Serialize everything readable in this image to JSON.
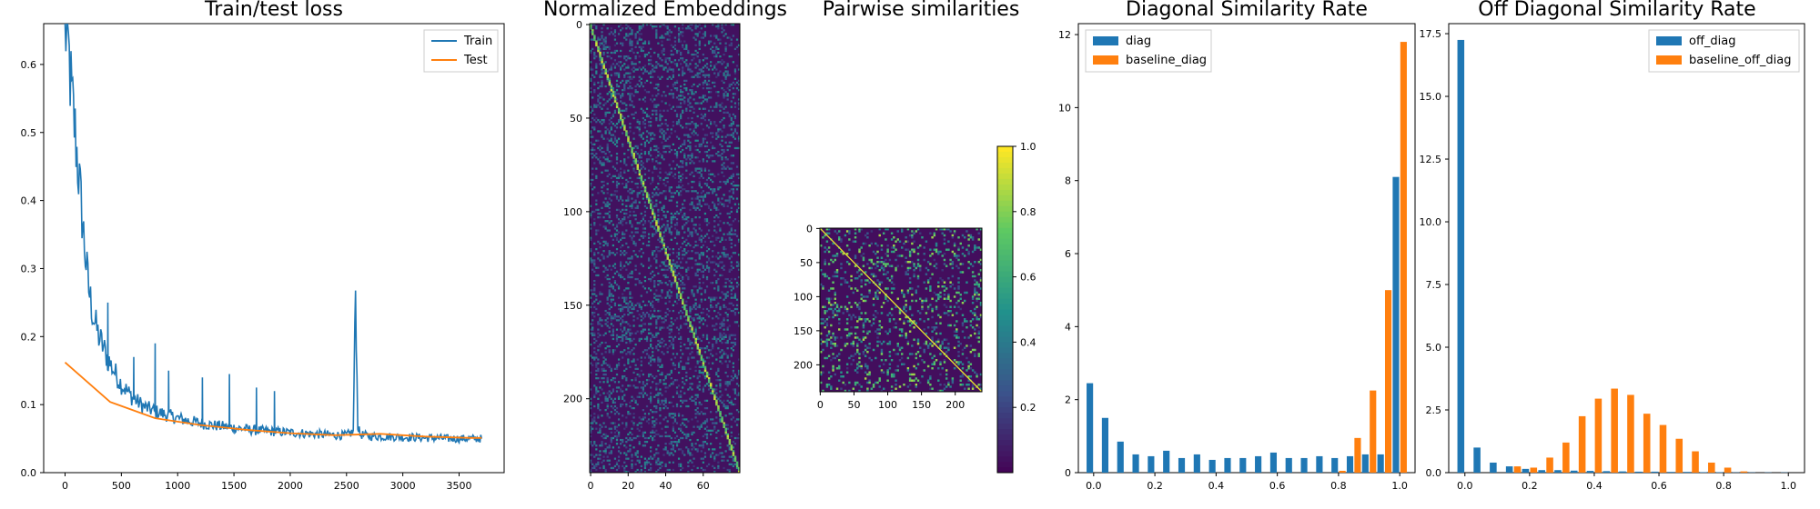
{
  "chart_data": [
    {
      "type": "line",
      "title": "Train/test loss",
      "xlim": [
        -190,
        3900
      ],
      "ylim": [
        0,
        0.66
      ],
      "xticks": [
        0,
        500,
        1000,
        1500,
        2000,
        2500,
        3000,
        3500
      ],
      "yticks": [
        0.0,
        0.1,
        0.2,
        0.3,
        0.4,
        0.5,
        0.6
      ],
      "legend_position": "top-right",
      "series": [
        {
          "name": "Train",
          "color": "#1f77b4",
          "x": [
            0,
            30,
            60,
            90,
            120,
            150,
            180,
            210,
            250,
            300,
            350,
            400,
            450,
            500,
            550,
            600,
            700,
            800,
            900,
            1000,
            1100,
            1200,
            1300,
            1400,
            1500,
            1600,
            1700,
            1800,
            1900,
            2000,
            2100,
            2200,
            2300,
            2400,
            2500,
            2560,
            2580,
            2600,
            2620,
            2700,
            2800,
            2900,
            3000,
            3100,
            3200,
            3300,
            3400,
            3500,
            3600,
            3700
          ],
          "y": [
            0.66,
            0.62,
            0.55,
            0.5,
            0.44,
            0.38,
            0.32,
            0.27,
            0.23,
            0.2,
            0.18,
            0.16,
            0.145,
            0.13,
            0.12,
            0.11,
            0.097,
            0.09,
            0.085,
            0.08,
            0.076,
            0.073,
            0.07,
            0.068,
            0.066,
            0.064,
            0.062,
            0.061,
            0.06,
            0.059,
            0.058,
            0.057,
            0.056,
            0.055,
            0.055,
            0.06,
            0.27,
            0.07,
            0.056,
            0.054,
            0.053,
            0.053,
            0.052,
            0.052,
            0.051,
            0.051,
            0.05,
            0.05,
            0.05,
            0.05
          ],
          "spikes": [
            {
              "x": 380,
              "y": 0.25
            },
            {
              "x": 610,
              "y": 0.17
            },
            {
              "x": 800,
              "y": 0.19
            },
            {
              "x": 920,
              "y": 0.15
            },
            {
              "x": 1220,
              "y": 0.14
            },
            {
              "x": 1460,
              "y": 0.145
            },
            {
              "x": 1700,
              "y": 0.125
            },
            {
              "x": 1860,
              "y": 0.12
            }
          ]
        },
        {
          "name": "Test",
          "color": "#ff7f0e",
          "x": [
            0,
            400,
            800,
            1200,
            1600,
            2000,
            2400,
            2800,
            3200,
            3600,
            3700
          ],
          "y": [
            0.162,
            0.104,
            0.08,
            0.07,
            0.063,
            0.058,
            0.055,
            0.057,
            0.053,
            0.051,
            0.051
          ]
        }
      ]
    },
    {
      "type": "heatmap",
      "title": "Normalized Embeddings",
      "xticks": [
        0,
        20,
        40,
        60
      ],
      "yticks": [
        0,
        50,
        100,
        150,
        200
      ],
      "rows": 240,
      "cols": 80,
      "colormap": "viridis"
    },
    {
      "type": "heatmap",
      "title": "Pairwise similarities",
      "xticks": [
        0,
        50,
        100,
        150,
        200
      ],
      "yticks": [
        0,
        50,
        100,
        150,
        200
      ],
      "rows": 240,
      "cols": 240,
      "colormap": "viridis",
      "colorbar_ticks": [
        "1.0",
        "0.8",
        "0.6",
        "0.4",
        "0.2"
      ]
    },
    {
      "type": "bar",
      "title": "Diagonal Similarity Rate",
      "xlim": [
        -0.05,
        1.05
      ],
      "ylim": [
        0,
        12.3
      ],
      "xticks": [
        0.0,
        0.2,
        0.4,
        0.6,
        0.8,
        1.0
      ],
      "yticks": [
        0,
        2,
        4,
        6,
        8,
        10,
        12
      ],
      "legend_position": "top-left",
      "bin_centers": [
        0.0,
        0.05,
        0.1,
        0.15,
        0.2,
        0.25,
        0.3,
        0.35,
        0.4,
        0.45,
        0.5,
        0.55,
        0.6,
        0.65,
        0.7,
        0.75,
        0.8,
        0.85,
        0.9,
        0.95,
        1.0
      ],
      "series": [
        {
          "name": "diag",
          "color": "#1f77b4",
          "values": [
            2.45,
            1.5,
            0.85,
            0.5,
            0.45,
            0.6,
            0.4,
            0.5,
            0.35,
            0.4,
            0.4,
            0.45,
            0.55,
            0.4,
            0.4,
            0.45,
            0.4,
            0.45,
            0.5,
            0.5,
            8.1
          ]
        },
        {
          "name": "baseline_diag",
          "color": "#ff7f0e",
          "values": [
            0,
            0,
            0,
            0,
            0,
            0,
            0,
            0,
            0,
            0,
            0,
            0,
            0,
            0,
            0,
            0,
            0.05,
            0.95,
            2.25,
            5.0,
            11.8
          ]
        }
      ]
    },
    {
      "type": "bar",
      "title": "Off Diagonal Similarity Rate",
      "xlim": [
        -0.05,
        1.05
      ],
      "ylim": [
        0,
        17.9
      ],
      "xticks": [
        0.0,
        0.2,
        0.4,
        0.6,
        0.8,
        1.0
      ],
      "yticks": [
        "0.0",
        "2.5",
        "5.0",
        "7.5",
        "10.0",
        "12.5",
        "15.0",
        "17.5"
      ],
      "ytick_values": [
        0,
        2.5,
        5,
        7.5,
        10,
        12.5,
        15,
        17.5
      ],
      "legend_position": "top-right",
      "bin_centers": [
        0.0,
        0.05,
        0.1,
        0.15,
        0.2,
        0.25,
        0.3,
        0.35,
        0.4,
        0.45,
        0.5,
        0.55,
        0.6,
        0.65,
        0.7,
        0.75,
        0.8,
        0.85,
        0.9,
        0.95,
        1.0
      ],
      "series": [
        {
          "name": "off_diag",
          "color": "#1f77b4",
          "values": [
            17.25,
            1.0,
            0.4,
            0.25,
            0.15,
            0.1,
            0.1,
            0.08,
            0.07,
            0.06,
            0.05,
            0.04,
            0.04,
            0.03,
            0.03,
            0.02,
            0.02,
            0.01,
            0.01,
            0.01,
            0.01
          ]
        },
        {
          "name": "baseline_off_diag",
          "color": "#ff7f0e",
          "values": [
            0,
            0,
            0,
            0.25,
            0.2,
            0.6,
            1.2,
            2.25,
            2.95,
            3.35,
            3.1,
            2.35,
            1.9,
            1.35,
            0.85,
            0.4,
            0.2,
            0.05,
            0,
            0,
            0
          ]
        }
      ]
    }
  ]
}
